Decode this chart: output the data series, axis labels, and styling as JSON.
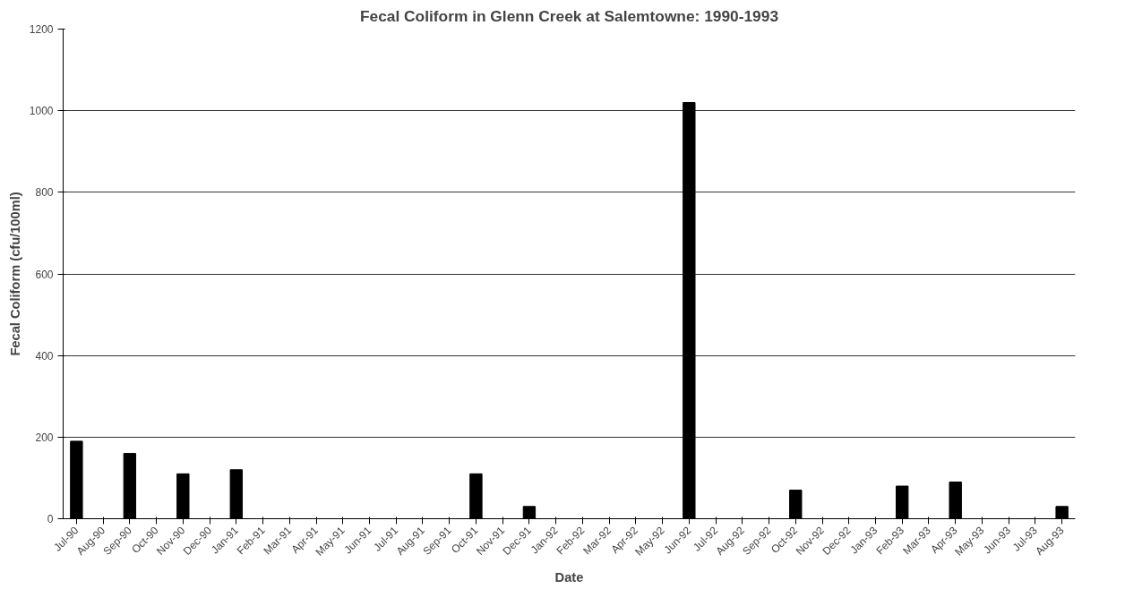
{
  "chart_data": {
    "type": "bar",
    "title": "Fecal Coliform in Glenn Creek at Salemtowne: 1990-1993",
    "xlabel": "Date",
    "ylabel": "Fecal Coliform (cfu/100ml)",
    "categories": [
      "Jul-90",
      "Aug-90",
      "Sep-90",
      "Oct-90",
      "Nov-90",
      "Dec-90",
      "Jan-91",
      "Feb-91",
      "Mar-91",
      "Apr-91",
      "May-91",
      "Jun-91",
      "Jul-91",
      "Aug-91",
      "Sep-91",
      "Oct-91",
      "Nov-91",
      "Dec-91",
      "Jan-92",
      "Feb-92",
      "Mar-92",
      "Apr-92",
      "May-92",
      "Jun-92",
      "Jul-92",
      "Aug-92",
      "Sep-92",
      "Oct-92",
      "Nov-92",
      "Dec-92",
      "Jan-93",
      "Feb-93",
      "Mar-93",
      "Apr-93",
      "May-93",
      "Jun-93",
      "Jul-93",
      "Aug-93"
    ],
    "values": [
      190,
      null,
      160,
      null,
      110,
      null,
      120,
      null,
      null,
      null,
      null,
      null,
      null,
      null,
      null,
      110,
      null,
      30,
      null,
      null,
      null,
      null,
      null,
      1020,
      null,
      null,
      null,
      70,
      null,
      null,
      null,
      80,
      null,
      90,
      null,
      null,
      null,
      30
    ],
    "color": "#000000",
    "ylim": [
      0,
      1200
    ],
    "yticks": [
      0,
      200,
      400,
      600,
      800,
      1000,
      1200
    ],
    "grid": "y"
  }
}
